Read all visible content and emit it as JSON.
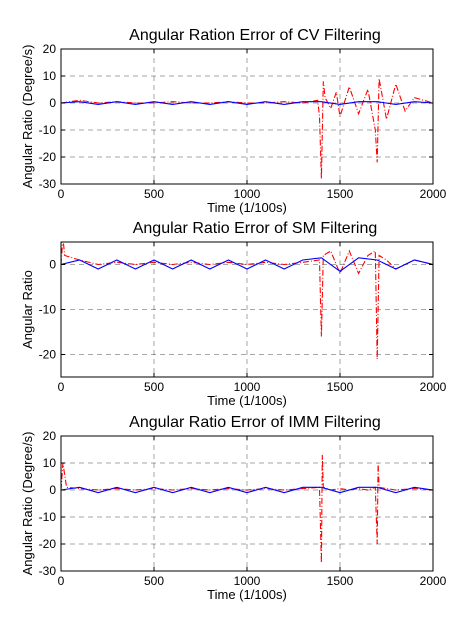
{
  "figure": {
    "colors": {
      "series_a": "#ff0000",
      "series_b": "#0000ff",
      "axes": "#000000",
      "grid": "#000000",
      "background": "#ffffff"
    }
  },
  "chart_data": [
    {
      "type": "line",
      "title": "Angular Ration Error of CV Filtering",
      "xlabel": "Time (1/100s)",
      "ylabel": "Angular Ratio (Degree/s)",
      "xlim": [
        0,
        2000
      ],
      "ylim": [
        -30,
        20
      ],
      "xticks": [
        0,
        500,
        1000,
        1500,
        2000
      ],
      "yticks": [
        -30,
        -20,
        -10,
        0,
        10,
        20
      ],
      "grid": true,
      "legend": "none",
      "series": [
        {
          "color": "#ff0000",
          "style": "dash-dot",
          "x": [
            0,
            100,
            200,
            300,
            400,
            500,
            600,
            700,
            800,
            900,
            1000,
            1100,
            1200,
            1300,
            1380,
            1390,
            1400,
            1410,
            1420,
            1450,
            1480,
            1500,
            1550,
            1600,
            1650,
            1690,
            1700,
            1710,
            1750,
            1800,
            1850,
            1900,
            1950,
            2000
          ],
          "y": [
            0,
            1,
            0,
            0.5,
            0,
            0,
            0.5,
            0,
            0,
            0.5,
            0,
            0,
            0.5,
            0,
            1,
            -5,
            -28,
            8,
            2,
            -2,
            4,
            -5,
            6,
            -4,
            5,
            -10,
            -22,
            9,
            -6,
            7,
            -3,
            2,
            1,
            0
          ]
        },
        {
          "color": "#0000ff",
          "style": "solid",
          "x": [
            0,
            100,
            200,
            300,
            400,
            500,
            600,
            700,
            800,
            900,
            1000,
            1100,
            1200,
            1300,
            1400,
            1500,
            1600,
            1700,
            1800,
            1900,
            2000
          ],
          "y": [
            0,
            0.5,
            -0.5,
            0.5,
            -0.5,
            0.5,
            -0.5,
            0.5,
            -0.5,
            0.5,
            -0.5,
            0.5,
            -0.5,
            0.5,
            0.5,
            -0.5,
            0.5,
            0.5,
            -0.5,
            0.5,
            0
          ]
        }
      ]
    },
    {
      "type": "line",
      "title": "Angular Ratio Error of SM Filtering",
      "xlabel": "Time (1/100s)",
      "ylabel": "Angular Ratio",
      "xlim": [
        0,
        2000
      ],
      "ylim": [
        -25,
        5
      ],
      "xticks": [
        0,
        500,
        1000,
        1500,
        2000
      ],
      "yticks": [
        -20,
        -10,
        0
      ],
      "grid": true,
      "legend": "none",
      "series": [
        {
          "color": "#ff0000",
          "style": "dash-dot",
          "x": [
            0,
            10,
            20,
            100,
            200,
            300,
            400,
            500,
            600,
            700,
            800,
            900,
            1000,
            1100,
            1200,
            1300,
            1390,
            1400,
            1410,
            1450,
            1500,
            1550,
            1600,
            1650,
            1690,
            1700,
            1710,
            1750,
            1800,
            1900,
            2000
          ],
          "y": [
            0,
            6,
            2,
            1,
            0,
            0.5,
            0,
            0.5,
            0,
            0.5,
            0,
            0.5,
            0,
            0.5,
            0,
            0.5,
            1,
            -16,
            2,
            3,
            -2,
            3,
            -2,
            2,
            3,
            -21,
            2,
            1,
            -1,
            1,
            0
          ]
        },
        {
          "color": "#0000ff",
          "style": "solid",
          "x": [
            0,
            100,
            200,
            300,
            400,
            500,
            600,
            700,
            800,
            900,
            1000,
            1100,
            1200,
            1300,
            1400,
            1500,
            1600,
            1700,
            1800,
            1900,
            2000
          ],
          "y": [
            0,
            1,
            -1,
            1,
            -1,
            1,
            -1,
            1,
            -1,
            1,
            -1,
            1,
            -1,
            1,
            1.5,
            -1.5,
            1.5,
            1,
            -1,
            1,
            0
          ]
        }
      ]
    },
    {
      "type": "line",
      "title": "Angular Ratio Error of IMM Filtering",
      "xlabel": "Time (1/100s)",
      "ylabel": "Angular Ratio (Degree/s)",
      "xlim": [
        0,
        2000
      ],
      "ylim": [
        -30,
        20
      ],
      "xticks": [
        0,
        500,
        1000,
        1500,
        2000
      ],
      "yticks": [
        -30,
        -20,
        -10,
        0,
        10,
        20
      ],
      "grid": true,
      "legend": "none",
      "series": [
        {
          "color": "#ff0000",
          "style": "dash-dot",
          "x": [
            0,
            10,
            30,
            100,
            200,
            300,
            400,
            500,
            600,
            700,
            800,
            900,
            1000,
            1100,
            1200,
            1300,
            1390,
            1400,
            1405,
            1410,
            1450,
            1500,
            1550,
            1600,
            1650,
            1690,
            1700,
            1705,
            1710,
            1750,
            1800,
            1900,
            2000
          ],
          "y": [
            0,
            10,
            1,
            0.5,
            0,
            0.5,
            0,
            0.5,
            0,
            0.5,
            0,
            0.5,
            0,
            0.5,
            0,
            0.5,
            1,
            -27,
            13,
            1,
            0,
            0.5,
            0,
            0.5,
            0,
            1,
            -20,
            10,
            1,
            0.5,
            0,
            0.5,
            0
          ]
        },
        {
          "color": "#0000ff",
          "style": "solid",
          "x": [
            0,
            100,
            200,
            300,
            400,
            500,
            600,
            700,
            800,
            900,
            1000,
            1100,
            1200,
            1300,
            1400,
            1500,
            1600,
            1700,
            1800,
            1900,
            2000
          ],
          "y": [
            0,
            1,
            -1,
            1,
            -1,
            1,
            -1,
            1,
            -1,
            1,
            -1,
            1,
            -1,
            1,
            1,
            -1,
            1,
            1,
            -1,
            1,
            0
          ]
        }
      ]
    }
  ]
}
